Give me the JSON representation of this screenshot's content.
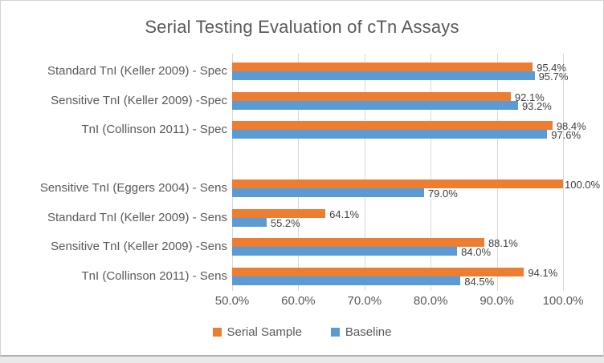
{
  "chart_data": {
    "type": "bar",
    "orientation": "horizontal",
    "title": "Serial Testing Evaluation of cTn Assays",
    "grid": true,
    "legend_position": "bottom",
    "x_axis": {
      "min": 50,
      "max": 100,
      "step": 10,
      "tick_labels": [
        "50.0%",
        "60.0%",
        "70.0%",
        "80.0%",
        "90.0%",
        "100.0%"
      ]
    },
    "series": [
      {
        "key": "serial_sample",
        "name": "Serial Sample",
        "color": "#ED7D31"
      },
      {
        "key": "baseline",
        "name": "Baseline",
        "color": "#5B9BD5"
      }
    ],
    "rows": [
      {
        "label": "Standard TnI (Keller 2009) - Spec",
        "serial_sample": 95.4,
        "serial_sample_label": "95.4%",
        "baseline": 95.7,
        "baseline_label": "95.7%"
      },
      {
        "label": "Sensitive TnI (Keller 2009) -Spec",
        "serial_sample": 92.1,
        "serial_sample_label": "92.1%",
        "baseline": 93.2,
        "baseline_label": "93.2%"
      },
      {
        "label": "TnI (Collinson 2011) - Spec",
        "serial_sample": 98.4,
        "serial_sample_label": "98.4%",
        "baseline": 97.6,
        "baseline_label": "97.6%"
      },
      {
        "label": "",
        "serial_sample": null,
        "serial_sample_label": null,
        "baseline": null,
        "baseline_label": null
      },
      {
        "label": "Sensitive TnI (Eggers 2004) - Sens",
        "serial_sample": 100.0,
        "serial_sample_label": "100.0%",
        "baseline": 79.0,
        "baseline_label": "79.0%"
      },
      {
        "label": "Standard TnI (Keller 2009) - Sens",
        "serial_sample": 64.1,
        "serial_sample_label": "64.1%",
        "baseline": 55.2,
        "baseline_label": "55.2%"
      },
      {
        "label": "Sensitive TnI (Keller 2009) -Sens",
        "serial_sample": 88.1,
        "serial_sample_label": "88.1%",
        "baseline": 84.0,
        "baseline_label": "84.0%"
      },
      {
        "label": "TnI (Collinson 2011) - Sens",
        "serial_sample": 94.1,
        "serial_sample_label": "94.1%",
        "baseline": 84.5,
        "baseline_label": "84.5%"
      }
    ]
  }
}
